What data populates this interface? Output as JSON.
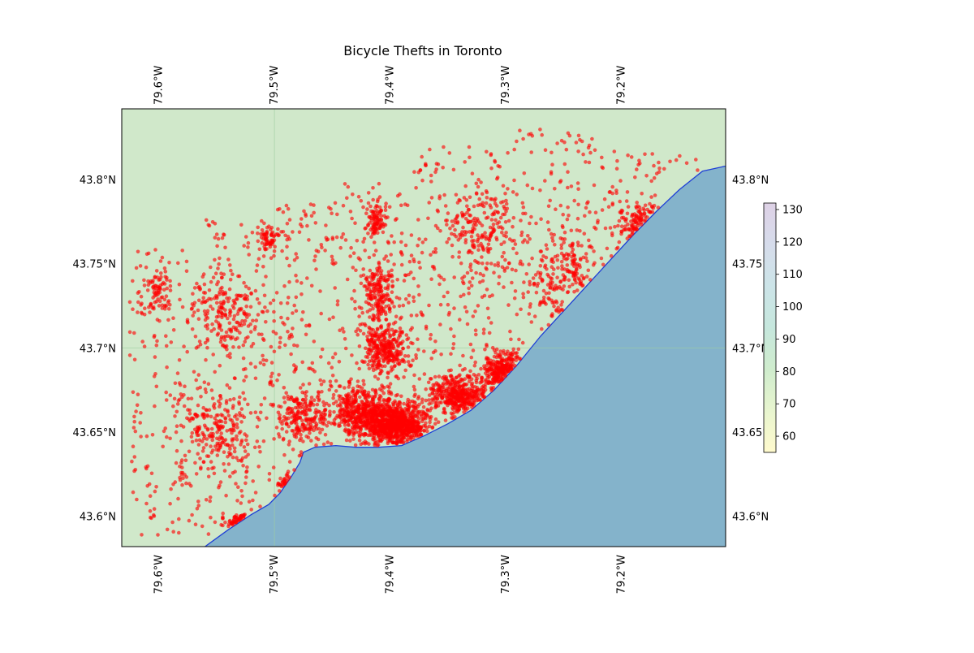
{
  "title": "Bicycle Thefts in Toronto",
  "colors": {
    "land": "#d0e8ca",
    "water": "#84b3cb",
    "coastline": "#1f3fd6",
    "points": "#ff0000",
    "gridline": "#9fcf9f"
  },
  "map": {
    "lon_range": [
      -79.632,
      -79.11
    ],
    "lat_range": [
      43.582,
      43.842
    ],
    "lon_ticks": [
      {
        "value": -79.6,
        "label": "79.6°W"
      },
      {
        "value": -79.5,
        "label": "79.5°W"
      },
      {
        "value": -79.4,
        "label": "79.4°W"
      },
      {
        "value": -79.3,
        "label": "79.3°W"
      },
      {
        "value": -79.2,
        "label": "79.2°W"
      }
    ],
    "lat_ticks": [
      {
        "value": 43.8,
        "label": "43.8°N"
      },
      {
        "value": 43.75,
        "label": "43.75°N"
      },
      {
        "value": 43.7,
        "label": "43.7°N"
      },
      {
        "value": 43.65,
        "label": "43.65°N"
      },
      {
        "value": 43.6,
        "label": "43.6°N"
      }
    ],
    "gridlines": {
      "lon": -79.5,
      "lat": 43.7
    },
    "coastline": [
      [
        -79.56,
        43.582
      ],
      [
        -79.54,
        43.592
      ],
      [
        -79.52,
        43.601
      ],
      [
        -79.505,
        43.607
      ],
      [
        -79.495,
        43.614
      ],
      [
        -79.485,
        43.624
      ],
      [
        -79.478,
        43.632
      ],
      [
        -79.475,
        43.638
      ],
      [
        -79.465,
        43.641
      ],
      [
        -79.447,
        43.642
      ],
      [
        -79.43,
        43.641
      ],
      [
        -79.41,
        43.641
      ],
      [
        -79.39,
        43.642
      ],
      [
        -79.37,
        43.648
      ],
      [
        -79.35,
        43.655
      ],
      [
        -79.33,
        43.663
      ],
      [
        -79.31,
        43.675
      ],
      [
        -79.29,
        43.69
      ],
      [
        -79.27,
        43.707
      ],
      [
        -79.25,
        43.722
      ],
      [
        -79.23,
        43.737
      ],
      [
        -79.21,
        43.752
      ],
      [
        -79.19,
        43.767
      ],
      [
        -79.17,
        43.781
      ],
      [
        -79.15,
        43.794
      ],
      [
        -79.13,
        43.805
      ],
      [
        -79.11,
        43.808
      ]
    ]
  },
  "colorbar": {
    "range": [
      55,
      132
    ],
    "ticks": [
      "60",
      "70",
      "80",
      "90",
      "100",
      "110",
      "120",
      "130"
    ],
    "colors": [
      "#fffacd",
      "#e8f5cf",
      "#cfeccd",
      "#c6e7dd",
      "#cce4e8",
      "#d6dceb",
      "#ded1e6"
    ]
  }
}
